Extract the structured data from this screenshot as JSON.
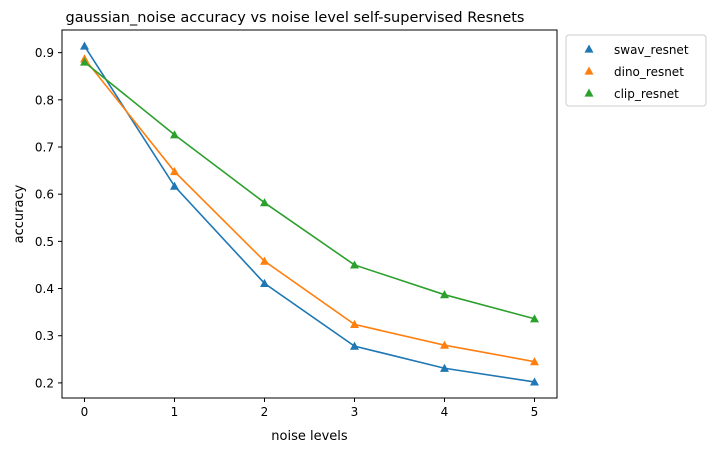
{
  "chart_data": {
    "type": "line",
    "title": "gaussian_noise accuracy vs noise level self-supervised Resnets",
    "xlabel": "noise levels",
    "ylabel": "accuracy",
    "x": [
      0,
      1,
      2,
      3,
      4,
      5
    ],
    "xlim": [
      -0.25,
      5.25
    ],
    "ylim": [
      0.168,
      0.948
    ],
    "xticks": [
      0,
      1,
      2,
      3,
      4,
      5
    ],
    "yticks": [
      0.2,
      0.3,
      0.4,
      0.5,
      0.6,
      0.7,
      0.8,
      0.9
    ],
    "ytick_labels": [
      "0.2",
      "0.3",
      "0.4",
      "0.5",
      "0.6",
      "0.7",
      "0.8",
      "0.9"
    ],
    "grid": false,
    "legend_position": "outside-upper-right",
    "marker": "triangle-up",
    "series": [
      {
        "name": "swav_resnet",
        "color": "#1f77b4",
        "values": [
          0.914,
          0.617,
          0.411,
          0.278,
          0.231,
          0.202
        ]
      },
      {
        "name": "dino_resnet",
        "color": "#ff7f0e",
        "values": [
          0.887,
          0.648,
          0.458,
          0.324,
          0.28,
          0.245
        ]
      },
      {
        "name": "clip_resnet",
        "color": "#2ca02c",
        "values": [
          0.88,
          0.726,
          0.582,
          0.45,
          0.387,
          0.336
        ]
      }
    ]
  }
}
